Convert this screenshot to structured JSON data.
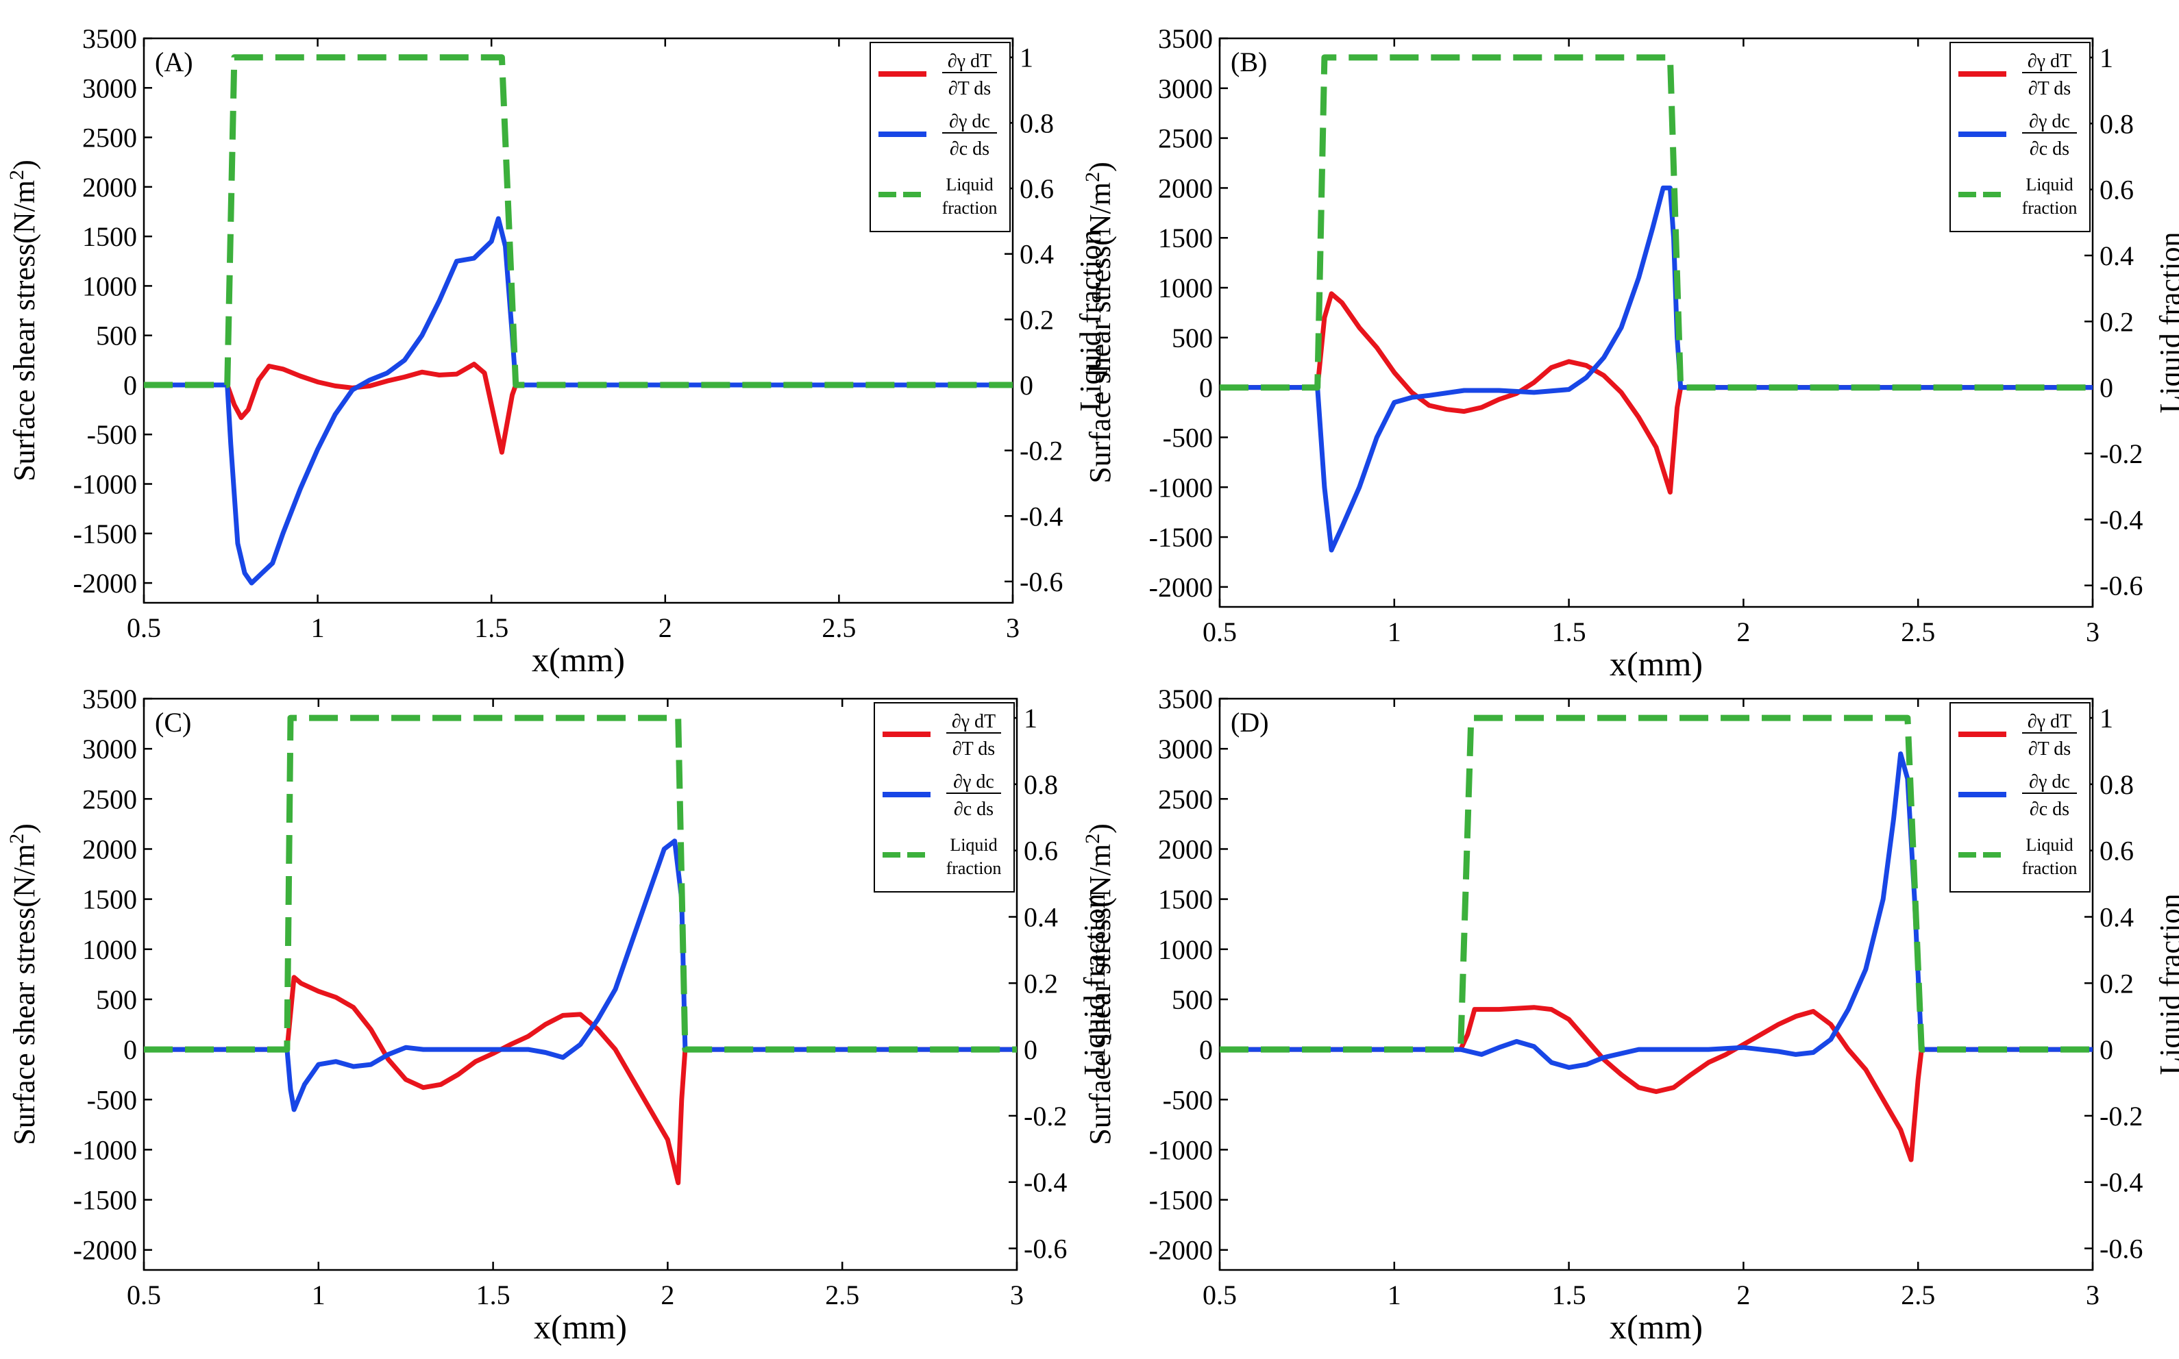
{
  "figure": {
    "panel_labels": [
      "(A)",
      "(B)",
      "(C)",
      "(D)"
    ]
  },
  "legend": {
    "entries": [
      {
        "num": "∂γ dT",
        "den": "∂T ds",
        "color": "#e8141c",
        "style": "solid"
      },
      {
        "num": "∂γ dc",
        "den": "∂c ds",
        "color": "#1846e6",
        "style": "solid"
      },
      {
        "line1": "Liquid",
        "line2": "fraction",
        "color": "#3cb03c",
        "style": "dashed"
      }
    ]
  },
  "axes": {
    "xlabel": "x(mm)",
    "ylabel_left": "Surface shear stress(N/m",
    "ylabel_left_sup": "2",
    "ylabel_left_close": ")",
    "ylabel_right": "Liquid fraction",
    "x_ticks": [
      0.5,
      1,
      1.5,
      2,
      2.5,
      3
    ],
    "x_tick_labels": [
      "0.5",
      "1",
      "1.5",
      "2",
      "2.5",
      "3"
    ],
    "y_left_ticks": [
      -2000,
      -1500,
      -1000,
      -500,
      0,
      500,
      1000,
      1500,
      2000,
      2500,
      3000,
      3500
    ],
    "y_left_tick_labels": [
      "-2000",
      "-1500",
      "-1000",
      "-500",
      "0",
      "500",
      "1000",
      "1500",
      "2000",
      "2500",
      "3000",
      "3500"
    ],
    "y_right_ticks": [
      -0.6,
      -0.4,
      -0.2,
      0,
      0.2,
      0.4,
      0.6,
      0.8,
      1
    ],
    "y_right_tick_labels": [
      "-0.6",
      "-0.4",
      "-0.2",
      "0",
      "0.2",
      "0.4",
      "0.6",
      "0.8",
      "1"
    ]
  },
  "chart_data": [
    {
      "type": "line",
      "panel": "(A)",
      "xlabel": "x(mm)",
      "ylabel": "Surface shear stress(N/m2)",
      "y2label": "Liquid fraction",
      "xlim": [
        0.5,
        3
      ],
      "ylim": [
        -2200,
        3500
      ],
      "y2lim": [
        -0.665,
        1.058
      ],
      "series": [
        {
          "name": "dγ/dT dT/ds",
          "axis": "left",
          "color": "#e8141c",
          "x": [
            0.5,
            0.74,
            0.76,
            0.78,
            0.8,
            0.83,
            0.86,
            0.9,
            0.95,
            1.0,
            1.05,
            1.1,
            1.15,
            1.2,
            1.25,
            1.3,
            1.35,
            1.4,
            1.45,
            1.48,
            1.5,
            1.53,
            1.56,
            1.57,
            3.0
          ],
          "y": [
            0,
            0,
            -200,
            -330,
            -250,
            50,
            190,
            160,
            90,
            30,
            -10,
            -30,
            -10,
            40,
            80,
            130,
            100,
            110,
            210,
            120,
            -200,
            -680,
            -100,
            0,
            0
          ]
        },
        {
          "name": "dγ/dc dc/ds",
          "axis": "left",
          "color": "#1846e6",
          "x": [
            0.5,
            0.74,
            0.75,
            0.77,
            0.79,
            0.81,
            0.84,
            0.87,
            0.9,
            0.95,
            1.0,
            1.05,
            1.1,
            1.15,
            1.2,
            1.25,
            1.3,
            1.35,
            1.4,
            1.45,
            1.5,
            1.52,
            1.54,
            1.56,
            1.57,
            3.0
          ],
          "y": [
            0,
            0,
            -600,
            -1600,
            -1900,
            -2000,
            -1900,
            -1800,
            -1500,
            -1050,
            -650,
            -300,
            -50,
            50,
            120,
            250,
            500,
            850,
            1250,
            1280,
            1450,
            1680,
            1400,
            500,
            0,
            0
          ]
        },
        {
          "name": "Liquid fraction",
          "axis": "right",
          "color": "#3cb03c",
          "dashed": true,
          "x": [
            0.5,
            0.74,
            0.76,
            1.53,
            1.57,
            3.0
          ],
          "y": [
            0,
            0,
            1,
            1,
            0,
            0
          ]
        }
      ]
    },
    {
      "type": "line",
      "panel": "(B)",
      "xlabel": "x(mm)",
      "ylabel": "Surface shear stress(N/m2)",
      "y2label": "Liquid fraction",
      "xlim": [
        0.5,
        3
      ],
      "ylim": [
        -2200,
        3500
      ],
      "y2lim": [
        -0.665,
        1.058
      ],
      "series": [
        {
          "name": "dγ/dT dT/ds",
          "axis": "left",
          "color": "#e8141c",
          "x": [
            0.5,
            0.78,
            0.8,
            0.82,
            0.85,
            0.9,
            0.95,
            1.0,
            1.05,
            1.1,
            1.15,
            1.2,
            1.25,
            1.3,
            1.35,
            1.4,
            1.45,
            1.5,
            1.55,
            1.6,
            1.65,
            1.7,
            1.75,
            1.79,
            1.81,
            1.82,
            3.0
          ],
          "y": [
            0,
            0,
            700,
            940,
            850,
            600,
            400,
            150,
            -50,
            -180,
            -220,
            -240,
            -200,
            -120,
            -60,
            50,
            200,
            260,
            220,
            120,
            -50,
            -300,
            -600,
            -1050,
            -200,
            0,
            0
          ]
        },
        {
          "name": "dγ/dc dc/ds",
          "axis": "left",
          "color": "#1846e6",
          "x": [
            0.5,
            0.78,
            0.8,
            0.82,
            0.85,
            0.9,
            0.95,
            1.0,
            1.05,
            1.1,
            1.2,
            1.3,
            1.4,
            1.5,
            1.55,
            1.6,
            1.65,
            1.7,
            1.74,
            1.77,
            1.79,
            1.8,
            1.81,
            1.82,
            3.0
          ],
          "y": [
            0,
            0,
            -1000,
            -1630,
            -1400,
            -1000,
            -500,
            -150,
            -100,
            -80,
            -30,
            -30,
            -50,
            -20,
            100,
            300,
            600,
            1100,
            1600,
            2000,
            2000,
            1500,
            500,
            0,
            0
          ]
        },
        {
          "name": "Liquid fraction",
          "axis": "right",
          "color": "#3cb03c",
          "dashed": true,
          "x": [
            0.5,
            0.78,
            0.8,
            1.79,
            1.82,
            3.0
          ],
          "y": [
            0,
            0,
            1,
            1,
            0,
            0
          ]
        }
      ]
    },
    {
      "type": "line",
      "panel": "(C)",
      "xlabel": "x(mm)",
      "ylabel": "Surface shear stress(N/m2)",
      "y2label": "Liquid fraction",
      "xlim": [
        0.5,
        3
      ],
      "ylim": [
        -2200,
        3500
      ],
      "y2lim": [
        -0.665,
        1.058
      ],
      "series": [
        {
          "name": "dγ/dT dT/ds",
          "axis": "left",
          "color": "#e8141c",
          "x": [
            0.5,
            0.91,
            0.93,
            0.95,
            1.0,
            1.05,
            1.1,
            1.15,
            1.2,
            1.25,
            1.3,
            1.35,
            1.4,
            1.45,
            1.5,
            1.55,
            1.6,
            1.65,
            1.7,
            1.75,
            1.8,
            1.85,
            1.9,
            1.95,
            2.0,
            2.03,
            2.04,
            2.05,
            3.0
          ],
          "y": [
            0,
            0,
            720,
            660,
            580,
            520,
            420,
            200,
            -100,
            -300,
            -380,
            -350,
            -250,
            -120,
            -40,
            50,
            130,
            250,
            340,
            350,
            200,
            0,
            -300,
            -600,
            -900,
            -1330,
            -500,
            0,
            0
          ]
        },
        {
          "name": "dγ/dc dc/ds",
          "axis": "left",
          "color": "#1846e6",
          "x": [
            0.5,
            0.91,
            0.92,
            0.93,
            0.96,
            1.0,
            1.05,
            1.1,
            1.15,
            1.2,
            1.25,
            1.3,
            1.4,
            1.5,
            1.6,
            1.65,
            1.7,
            1.75,
            1.8,
            1.85,
            1.9,
            1.95,
            1.99,
            2.02,
            2.04,
            2.05,
            3.0
          ],
          "y": [
            0,
            0,
            -400,
            -600,
            -350,
            -150,
            -120,
            -170,
            -150,
            -50,
            20,
            0,
            0,
            0,
            0,
            -30,
            -80,
            50,
            300,
            600,
            1100,
            1600,
            2000,
            2080,
            1500,
            0,
            0
          ]
        },
        {
          "name": "Liquid fraction",
          "axis": "right",
          "color": "#3cb03c",
          "dashed": true,
          "x": [
            0.5,
            0.91,
            0.92,
            2.03,
            2.05,
            3.0
          ],
          "y": [
            0,
            0,
            1,
            1,
            0,
            0
          ]
        }
      ]
    },
    {
      "type": "line",
      "panel": "(D)",
      "xlabel": "x(mm)",
      "ylabel": "Surface shear stress(N/m2)",
      "y2label": "Liquid fraction",
      "xlim": [
        0.5,
        3
      ],
      "ylim": [
        -2200,
        3500
      ],
      "y2lim": [
        -0.665,
        1.058
      ],
      "series": [
        {
          "name": "dγ/dT dT/ds",
          "axis": "left",
          "color": "#e8141c",
          "x": [
            0.5,
            1.19,
            1.21,
            1.23,
            1.3,
            1.4,
            1.45,
            1.5,
            1.55,
            1.6,
            1.65,
            1.7,
            1.75,
            1.8,
            1.85,
            1.9,
            1.95,
            2.0,
            2.05,
            2.1,
            2.15,
            2.2,
            2.25,
            2.3,
            2.35,
            2.4,
            2.45,
            2.48,
            2.5,
            2.51,
            3.0
          ],
          "y": [
            0,
            0,
            150,
            400,
            400,
            420,
            400,
            300,
            100,
            -100,
            -250,
            -380,
            -420,
            -380,
            -250,
            -130,
            -50,
            50,
            150,
            250,
            330,
            380,
            250,
            0,
            -200,
            -500,
            -800,
            -1100,
            -300,
            0,
            0
          ]
        },
        {
          "name": "dγ/dc dc/ds",
          "axis": "left",
          "color": "#1846e6",
          "x": [
            0.5,
            1.19,
            1.25,
            1.3,
            1.35,
            1.4,
            1.45,
            1.5,
            1.55,
            1.6,
            1.7,
            1.8,
            1.9,
            2.0,
            2.1,
            2.15,
            2.2,
            2.25,
            2.3,
            2.35,
            2.4,
            2.43,
            2.45,
            2.47,
            2.49,
            2.51,
            3.0
          ],
          "y": [
            0,
            0,
            -50,
            20,
            80,
            30,
            -130,
            -180,
            -150,
            -80,
            0,
            0,
            0,
            20,
            -20,
            -50,
            -30,
            100,
            400,
            800,
            1500,
            2300,
            2950,
            2700,
            1500,
            0,
            0
          ]
        },
        {
          "name": "Liquid fraction",
          "axis": "right",
          "color": "#3cb03c",
          "dashed": true,
          "x": [
            0.5,
            1.19,
            1.22,
            2.47,
            2.51,
            3.0
          ],
          "y": [
            0,
            0,
            1,
            1,
            0,
            0
          ]
        }
      ]
    }
  ]
}
